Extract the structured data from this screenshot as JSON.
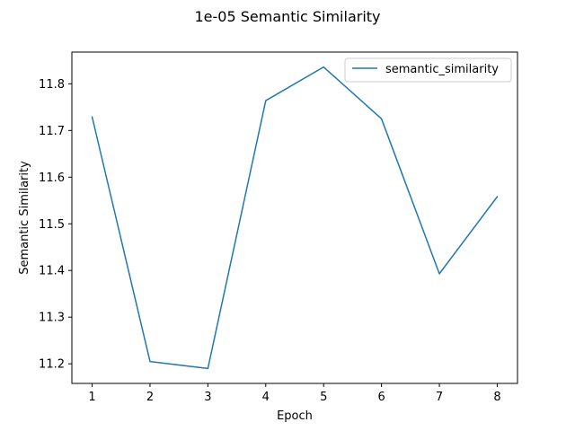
{
  "chart_data": {
    "type": "line",
    "title": "1e-05 Semantic Similarity",
    "xlabel": "Epoch",
    "ylabel": "Semantic Similarity",
    "x": [
      1,
      2,
      3,
      4,
      5,
      6,
      7,
      8
    ],
    "series": [
      {
        "name": "semantic_similarity",
        "values": [
          11.729,
          11.205,
          11.19,
          11.764,
          11.836,
          11.725,
          11.393,
          11.558
        ],
        "color": "#1f77b4"
      }
    ],
    "xticks": [
      "1",
      "2",
      "3",
      "4",
      "5",
      "6",
      "7",
      "8"
    ],
    "yticks": [
      "11.2",
      "11.3",
      "11.4",
      "11.5",
      "11.6",
      "11.7",
      "11.8"
    ],
    "xlim": [
      0.65,
      8.35
    ],
    "ylim": [
      11.158,
      11.868
    ],
    "grid": false,
    "legend_position": "top-right"
  }
}
